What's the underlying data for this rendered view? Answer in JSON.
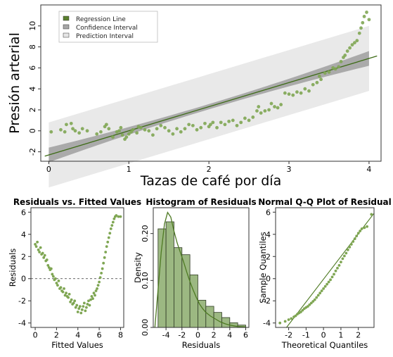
{
  "chart_data": [
    {
      "type": "scatter",
      "title": "",
      "xlabel": "Tazas de café por día",
      "ylabel": "Presión arterial",
      "xlim": [
        -0.1,
        4.15
      ],
      "ylim": [
        -2.9,
        12.0
      ],
      "xticks": [
        "0",
        "1",
        "2",
        "3",
        "4"
      ],
      "yticks": [
        "-2",
        "0",
        "2",
        "4",
        "6",
        "8",
        "10"
      ],
      "legend": {
        "placement": "top-left",
        "entries": [
          "Regression Line",
          "Confidence Interval",
          "Prediction Interval"
        ]
      },
      "regression_line": {
        "intercept": -2.3,
        "slope": 2.3
      },
      "confidence_interval_halfwidth": {
        "at_x0": 0.7,
        "at_x4": 0.7,
        "at_center": 0.25
      },
      "prediction_interval_halfwidth": 3.1,
      "points": [
        [
          0.03,
          -0.1
        ],
        [
          0.15,
          0.1
        ],
        [
          0.2,
          -0.1
        ],
        [
          0.22,
          0.6
        ],
        [
          0.28,
          0.7
        ],
        [
          0.3,
          0.2
        ],
        [
          0.33,
          0.0
        ],
        [
          0.38,
          -0.2
        ],
        [
          0.42,
          0.2
        ],
        [
          0.48,
          0.0
        ],
        [
          0.6,
          -0.3
        ],
        [
          0.65,
          -0.1
        ],
        [
          0.7,
          0.4
        ],
        [
          0.72,
          0.6
        ],
        [
          0.75,
          0.2
        ],
        [
          0.8,
          -0.6
        ],
        [
          0.85,
          -0.1
        ],
        [
          0.88,
          0.0
        ],
        [
          0.9,
          0.3
        ],
        [
          0.92,
          -0.4
        ],
        [
          0.95,
          -0.8
        ],
        [
          0.97,
          -0.6
        ],
        [
          1.0,
          -0.3
        ],
        [
          1.03,
          -0.1
        ],
        [
          1.05,
          0.1
        ],
        [
          1.1,
          -0.2
        ],
        [
          1.12,
          0.4
        ],
        [
          1.15,
          0.3
        ],
        [
          1.2,
          0.1
        ],
        [
          1.25,
          0.0
        ],
        [
          1.3,
          -0.4
        ],
        [
          1.35,
          0.2
        ],
        [
          1.4,
          0.5
        ],
        [
          1.45,
          0.3
        ],
        [
          1.5,
          0.0
        ],
        [
          1.55,
          -0.3
        ],
        [
          1.6,
          0.2
        ],
        [
          1.65,
          -0.1
        ],
        [
          1.7,
          0.2
        ],
        [
          1.75,
          0.6
        ],
        [
          1.8,
          0.5
        ],
        [
          1.85,
          0.1
        ],
        [
          1.9,
          0.3
        ],
        [
          1.95,
          0.7
        ],
        [
          2.0,
          0.4
        ],
        [
          2.02,
          0.6
        ],
        [
          2.05,
          0.8
        ],
        [
          2.1,
          0.3
        ],
        [
          2.15,
          0.8
        ],
        [
          2.2,
          0.6
        ],
        [
          2.25,
          0.9
        ],
        [
          2.3,
          1.0
        ],
        [
          2.35,
          0.5
        ],
        [
          2.4,
          0.8
        ],
        [
          2.45,
          1.2
        ],
        [
          2.5,
          1.0
        ],
        [
          2.55,
          1.3
        ],
        [
          2.6,
          1.9
        ],
        [
          2.62,
          2.3
        ],
        [
          2.65,
          1.7
        ],
        [
          2.7,
          1.9
        ],
        [
          2.75,
          2.0
        ],
        [
          2.78,
          2.6
        ],
        [
          2.82,
          2.3
        ],
        [
          2.86,
          2.2
        ],
        [
          2.9,
          2.5
        ],
        [
          2.95,
          3.6
        ],
        [
          3.0,
          3.5
        ],
        [
          3.05,
          3.4
        ],
        [
          3.1,
          3.7
        ],
        [
          3.15,
          3.6
        ],
        [
          3.2,
          4.0
        ],
        [
          3.25,
          3.8
        ],
        [
          3.3,
          4.4
        ],
        [
          3.35,
          4.6
        ],
        [
          3.38,
          5.2
        ],
        [
          3.4,
          4.9
        ],
        [
          3.45,
          5.5
        ],
        [
          3.5,
          5.6
        ],
        [
          3.55,
          6.0
        ],
        [
          3.58,
          5.9
        ],
        [
          3.62,
          6.1
        ],
        [
          3.65,
          6.6
        ],
        [
          3.68,
          7.0
        ],
        [
          3.7,
          7.2
        ],
        [
          3.73,
          7.6
        ],
        [
          3.76,
          7.9
        ],
        [
          3.79,
          8.2
        ],
        [
          3.82,
          8.4
        ],
        [
          3.85,
          8.6
        ],
        [
          3.88,
          9.3
        ],
        [
          3.9,
          9.8
        ],
        [
          3.92,
          10.3
        ],
        [
          3.94,
          10.9
        ],
        [
          3.97,
          11.3
        ],
        [
          4.0,
          10.6
        ]
      ]
    },
    {
      "type": "scatter",
      "title": "Residuals vs. Fitted Values",
      "xlabel": "Fitted Values",
      "ylabel": "Residuals",
      "xlim": [
        -0.4,
        8.3
      ],
      "ylim": [
        -4.4,
        6.4
      ],
      "xticks": [
        "0",
        "2",
        "4",
        "6",
        "8"
      ],
      "yticks": [
        "-4",
        "-2",
        "0",
        "2",
        "4",
        "6"
      ],
      "reference_line_y": 0,
      "points": [
        [
          0.0,
          3.1
        ],
        [
          0.1,
          2.9
        ],
        [
          0.2,
          3.3
        ],
        [
          0.3,
          2.6
        ],
        [
          0.4,
          2.4
        ],
        [
          0.5,
          2.8
        ],
        [
          0.6,
          2.2
        ],
        [
          0.7,
          2.3
        ],
        [
          0.8,
          1.9
        ],
        [
          0.9,
          2.1
        ],
        [
          1.0,
          1.6
        ],
        [
          1.1,
          1.7
        ],
        [
          1.2,
          1.2
        ],
        [
          1.3,
          1.0
        ],
        [
          1.4,
          0.8
        ],
        [
          1.5,
          0.9
        ],
        [
          1.6,
          0.4
        ],
        [
          1.7,
          0.2
        ],
        [
          1.8,
          -0.1
        ],
        [
          1.9,
          0.0
        ],
        [
          2.0,
          -0.4
        ],
        [
          2.1,
          -0.6
        ],
        [
          2.2,
          -0.2
        ],
        [
          2.3,
          -0.9
        ],
        [
          2.4,
          -0.8
        ],
        [
          2.5,
          -1.1
        ],
        [
          2.6,
          -1.2
        ],
        [
          2.7,
          -0.9
        ],
        [
          2.8,
          -1.5
        ],
        [
          2.9,
          -1.3
        ],
        [
          3.0,
          -1.6
        ],
        [
          3.1,
          -1.7
        ],
        [
          3.2,
          -1.4
        ],
        [
          3.3,
          -2.1
        ],
        [
          3.4,
          -1.9
        ],
        [
          3.5,
          -2.3
        ],
        [
          3.6,
          -2.2
        ],
        [
          3.7,
          -2.0
        ],
        [
          3.8,
          -2.6
        ],
        [
          3.9,
          -2.4
        ],
        [
          4.0,
          -3.0
        ],
        [
          4.1,
          -2.7
        ],
        [
          4.2,
          -2.5
        ],
        [
          4.3,
          -3.1
        ],
        [
          4.4,
          -2.8
        ],
        [
          4.5,
          -2.5
        ],
        [
          4.6,
          -2.2
        ],
        [
          4.7,
          -2.9
        ],
        [
          4.8,
          -2.6
        ],
        [
          4.9,
          -2.3
        ],
        [
          5.0,
          -2.0
        ],
        [
          5.1,
          -2.4
        ],
        [
          5.2,
          -1.9
        ],
        [
          5.3,
          -1.6
        ],
        [
          5.4,
          -1.8
        ],
        [
          5.5,
          -1.3
        ],
        [
          5.6,
          -1.5
        ],
        [
          5.7,
          -1.1
        ],
        [
          5.8,
          -0.9
        ],
        [
          5.9,
          -0.6
        ],
        [
          6.0,
          -0.3
        ],
        [
          6.1,
          0.1
        ],
        [
          6.2,
          0.5
        ],
        [
          6.3,
          0.9
        ],
        [
          6.4,
          1.4
        ],
        [
          6.5,
          1.9
        ],
        [
          6.6,
          2.4
        ],
        [
          6.7,
          2.9
        ],
        [
          6.8,
          3.3
        ],
        [
          6.9,
          3.7
        ],
        [
          7.0,
          4.1
        ],
        [
          7.1,
          4.5
        ],
        [
          7.2,
          4.8
        ],
        [
          7.3,
          5.1
        ],
        [
          7.4,
          5.4
        ],
        [
          7.5,
          5.6
        ],
        [
          7.6,
          5.7
        ],
        [
          7.8,
          5.6
        ],
        [
          8.0,
          5.6
        ]
      ]
    },
    {
      "type": "bar",
      "title": "Histogram of Residuals",
      "xlabel": "Residuals",
      "ylabel": "Density",
      "xlim": [
        -5.6,
        6.4
      ],
      "ylim": [
        0,
        0.255
      ],
      "xticks": [
        "-4",
        "-2",
        "0",
        "2",
        "4",
        "6"
      ],
      "yticks": [
        "0.00",
        "0.10",
        "0.20"
      ],
      "bin_edges": [
        -5,
        -4,
        -3,
        -2,
        -1,
        0,
        1,
        2,
        3,
        4,
        5,
        6
      ],
      "values": [
        0.21,
        0.225,
        0.17,
        0.155,
        0.112,
        0.058,
        0.045,
        0.032,
        0.021,
        0.01,
        0.005
      ],
      "density_curve": [
        [
          -5.4,
          0.0
        ],
        [
          -5.0,
          0.08
        ],
        [
          -4.6,
          0.16
        ],
        [
          -4.2,
          0.22
        ],
        [
          -3.8,
          0.245
        ],
        [
          -3.4,
          0.235
        ],
        [
          -3.0,
          0.205
        ],
        [
          -2.6,
          0.18
        ],
        [
          -2.2,
          0.16
        ],
        [
          -1.8,
          0.14
        ],
        [
          -1.4,
          0.118
        ],
        [
          -1.0,
          0.098
        ],
        [
          -0.6,
          0.08
        ],
        [
          -0.2,
          0.064
        ],
        [
          0.2,
          0.05
        ],
        [
          0.6,
          0.04
        ],
        [
          1.0,
          0.032
        ],
        [
          1.6,
          0.024
        ],
        [
          2.2,
          0.018
        ],
        [
          2.8,
          0.012
        ],
        [
          3.4,
          0.008
        ],
        [
          4.0,
          0.005
        ],
        [
          5.0,
          0.002
        ],
        [
          6.0,
          0.001
        ]
      ]
    },
    {
      "type": "scatter",
      "title": "Normal Q-Q Plot of Residual",
      "xlabel": "Theoretical Quantiles",
      "ylabel": "Sample Quantiles",
      "xlim": [
        -2.75,
        2.9
      ],
      "ylim": [
        -4.4,
        6.4
      ],
      "xticks": [
        "-2",
        "-1",
        "0",
        "1",
        "2"
      ],
      "yticks": [
        "-4",
        "-2",
        "0",
        "2",
        "4",
        "6"
      ],
      "reference_line": {
        "intercept": -0.05,
        "slope": 2.05
      },
      "points": [
        [
          -2.5,
          -4.0
        ],
        [
          -2.2,
          -3.85
        ],
        [
          -2.0,
          -3.7
        ],
        [
          -1.85,
          -3.6
        ],
        [
          -1.7,
          -3.45
        ],
        [
          -1.6,
          -3.35
        ],
        [
          -1.5,
          -3.2
        ],
        [
          -1.4,
          -3.1
        ],
        [
          -1.3,
          -3.0
        ],
        [
          -1.2,
          -2.85
        ],
        [
          -1.1,
          -2.7
        ],
        [
          -1.0,
          -2.6
        ],
        [
          -0.9,
          -2.5
        ],
        [
          -0.8,
          -2.35
        ],
        [
          -0.7,
          -2.2
        ],
        [
          -0.6,
          -2.05
        ],
        [
          -0.5,
          -1.9
        ],
        [
          -0.4,
          -1.7
        ],
        [
          -0.3,
          -1.5
        ],
        [
          -0.2,
          -1.3
        ],
        [
          -0.1,
          -1.1
        ],
        [
          0.0,
          -0.9
        ],
        [
          0.1,
          -0.7
        ],
        [
          0.2,
          -0.5
        ],
        [
          0.3,
          -0.3
        ],
        [
          0.4,
          -0.1
        ],
        [
          0.5,
          0.15
        ],
        [
          0.6,
          0.4
        ],
        [
          0.7,
          0.7
        ],
        [
          0.8,
          0.95
        ],
        [
          0.9,
          1.2
        ],
        [
          1.0,
          1.5
        ],
        [
          1.1,
          1.8
        ],
        [
          1.2,
          2.05
        ],
        [
          1.3,
          2.3
        ],
        [
          1.4,
          2.6
        ],
        [
          1.5,
          2.85
        ],
        [
          1.6,
          3.1
        ],
        [
          1.7,
          3.35
        ],
        [
          1.8,
          3.6
        ],
        [
          1.9,
          3.85
        ],
        [
          2.0,
          4.1
        ],
        [
          2.1,
          4.3
        ],
        [
          2.2,
          4.5
        ],
        [
          2.35,
          4.6
        ],
        [
          2.5,
          4.7
        ],
        [
          2.75,
          5.8
        ]
      ]
    }
  ]
}
